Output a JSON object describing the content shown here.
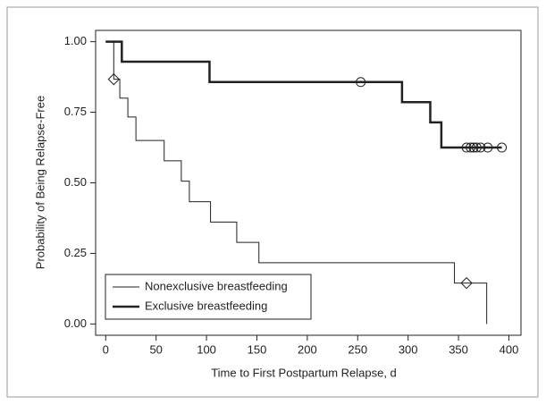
{
  "chart_data": {
    "type": "step",
    "x_label": "Time to First Postpartum Relapse, d",
    "y_label": "Probability of Being Relapse-Free",
    "xlim": [
      -10,
      412
    ],
    "ylim": [
      -0.04,
      1.04
    ],
    "xticks": [
      0,
      50,
      100,
      150,
      200,
      250,
      300,
      350,
      400
    ],
    "yticks": [
      {
        "value": 0,
        "label": "0.00"
      },
      {
        "value": 0.25,
        "label": "0.25"
      },
      {
        "value": 0.5,
        "label": "0.50"
      },
      {
        "value": 0.75,
        "label": "0.75"
      },
      {
        "value": 1,
        "label": "1.00"
      }
    ],
    "legend": "lower left",
    "series": [
      {
        "name": "Nonexclusive breastfeeding",
        "color": "#222222",
        "line_width": 1,
        "x": [
          0,
          8,
          14,
          22,
          30,
          58,
          75,
          83,
          104,
          130,
          152,
          346,
          378
        ],
        "values": [
          1,
          0.867,
          0.8,
          0.733,
          0.65,
          0.578,
          0.506,
          0.433,
          0.361,
          0.289,
          0.217,
          0.145,
          0
        ],
        "censored": {
          "marker": "diamond",
          "x": [
            8,
            358
          ],
          "values": [
            0.867,
            0.145
          ]
        }
      },
      {
        "name": "Exclusive breastfeeding",
        "color": "#222222",
        "line_width": 2.5,
        "x": [
          0,
          16,
          103,
          294,
          322,
          333
        ],
        "values": [
          1,
          0.929,
          0.857,
          0.786,
          0.714,
          0.625
        ],
        "censored": {
          "marker": "circle",
          "x": [
            253,
            358,
            362,
            365,
            368,
            372,
            379,
            393
          ],
          "values": [
            0.857,
            0.625,
            0.625,
            0.625,
            0.625,
            0.625,
            0.625,
            0.625
          ]
        }
      }
    ]
  }
}
